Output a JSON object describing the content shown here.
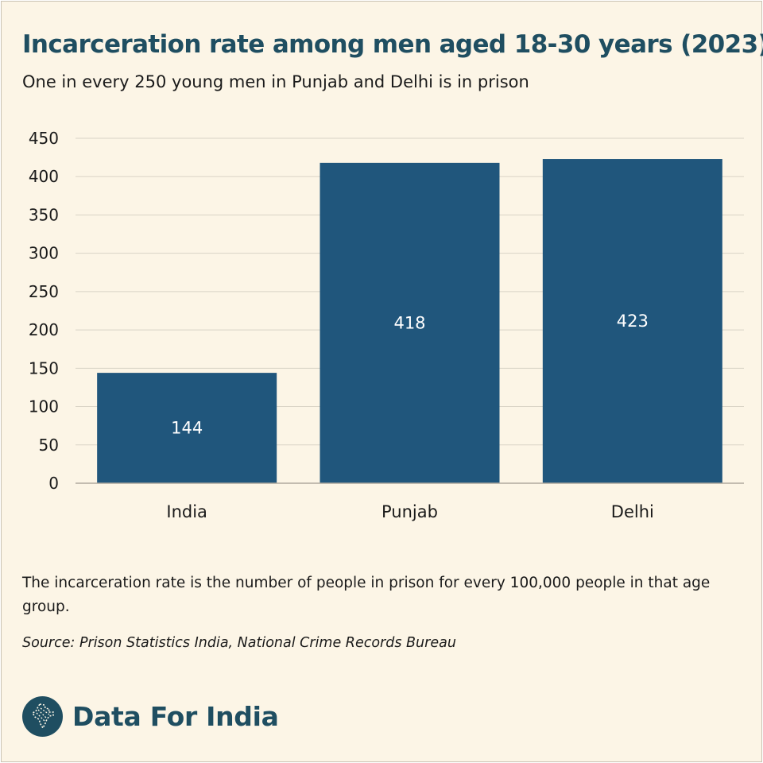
{
  "title": "Incarceration rate among men aged 18-30 years (2023)",
  "subtitle": "One in every 250 young men in Punjab and Delhi is in prison",
  "note": "The incarceration rate is the number of people in prison for every 100,000 people in that age group.",
  "source": "Source: Prison Statistics India, National Crime Records Bureau",
  "brand": {
    "name": "Data For India",
    "logo_icon": "india-map-icon"
  },
  "colors": {
    "bar": "#20567c",
    "bar_label": "#ffffff",
    "grid": "#d9d3c6",
    "baseline": "#b0aa9e",
    "tick_text": "#1a1a1a",
    "title": "#1f4e61",
    "background": "#fcf5e6"
  },
  "chart_data": {
    "type": "bar",
    "categories": [
      "India",
      "Punjab",
      "Delhi"
    ],
    "values": [
      144,
      418,
      423
    ],
    "data_labels": [
      "144",
      "418",
      "423"
    ],
    "ylim": [
      0,
      450
    ],
    "yticks": [
      0,
      50,
      100,
      150,
      200,
      250,
      300,
      350,
      400,
      450
    ],
    "grid": true,
    "legend": "none"
  }
}
